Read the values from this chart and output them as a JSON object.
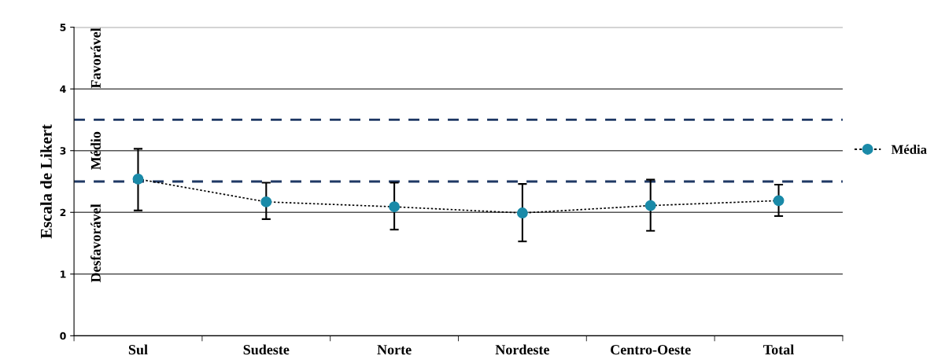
{
  "chart_data": {
    "type": "line",
    "ylabel": "Escala de Likert",
    "categories": [
      "Sul",
      "Sudeste",
      "Norte",
      "Nordeste",
      "Centro-Oeste",
      "Total"
    ],
    "series": [
      {
        "name": "Média",
        "color": "#1a8aa8",
        "values": [
          2.54,
          2.17,
          2.09,
          1.99,
          2.11,
          2.19
        ],
        "errors": [
          [
            2.03,
            3.03
          ],
          [
            1.89,
            2.48
          ],
          [
            1.72,
            2.48
          ],
          [
            1.53,
            2.46
          ],
          [
            1.7,
            2.53
          ],
          [
            1.94,
            2.45
          ]
        ]
      }
    ],
    "ylim": [
      0,
      5
    ],
    "yticks": [
      0,
      1,
      2,
      3,
      4,
      5
    ],
    "grid": "y",
    "legend": "right",
    "marker": "circle",
    "line_style": "dotted",
    "ref_lines": [
      {
        "axis": "y",
        "value": 3.5,
        "color": "#1f3864",
        "line_style": "dashed"
      },
      {
        "axis": "y",
        "value": 2.5,
        "color": "#1f3864",
        "line_style": "dashed"
      }
    ],
    "annotations": [
      "Favorável",
      "Médio",
      "Desfavorável"
    ]
  }
}
